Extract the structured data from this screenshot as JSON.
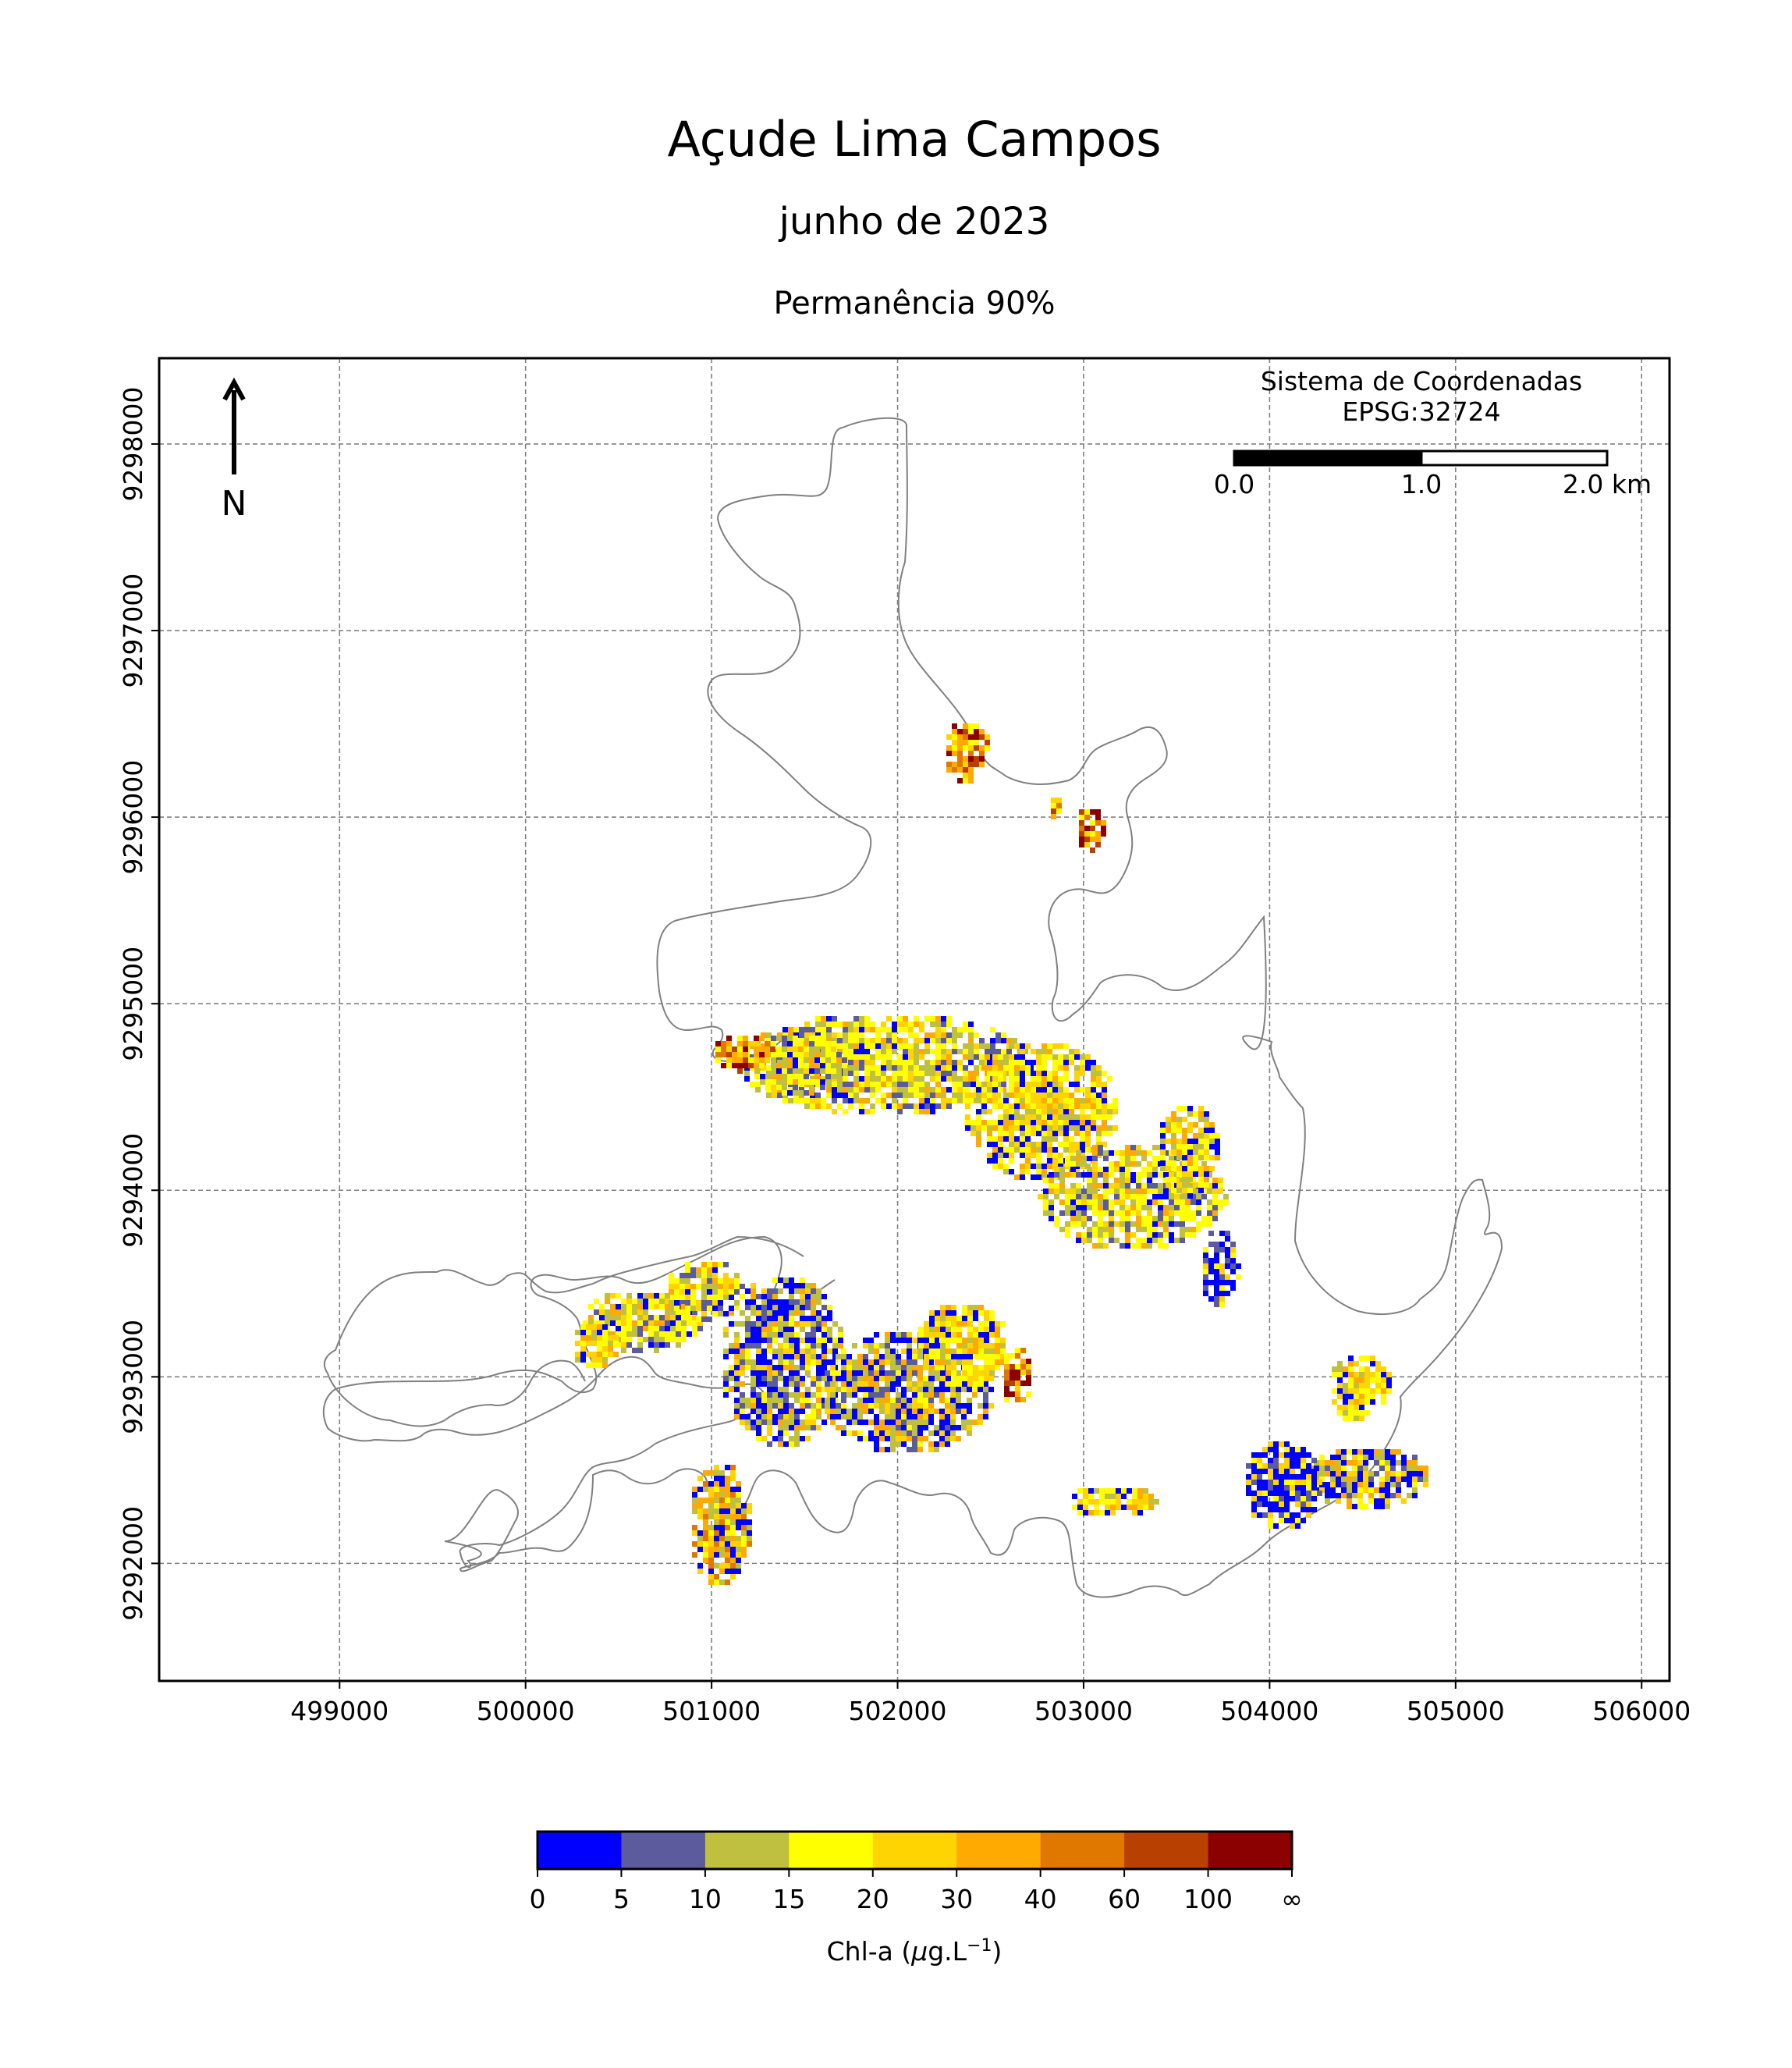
{
  "title": "Açude Lima Campos",
  "subtitle": "junho de 2023",
  "subtitle2": "Permanência 90%",
  "north_label": "N",
  "crs": {
    "line1": "Sistema de Coordenadas",
    "line2": "EPSG:32724"
  },
  "scalebar": {
    "labels": [
      "0.0",
      "1.0",
      "2.0 km"
    ]
  },
  "axes": {
    "x_ticks": [
      "499000",
      "500000",
      "501000",
      "502000",
      "503000",
      "504000",
      "505000",
      "506000"
    ],
    "y_ticks": [
      "9292000",
      "9293000",
      "9294000",
      "9295000",
      "9296000",
      "9297000",
      "9298000"
    ],
    "x_range": [
      498030,
      506150
    ],
    "y_range": [
      9291370,
      9298460
    ],
    "grid": true
  },
  "legend": {
    "title_prefix": "Chl-a (",
    "title_mu": "μ",
    "title_mid": "g.L",
    "title_sup": "−1",
    "title_suffix": ")",
    "classes": [
      {
        "from": "0",
        "color": "#0000ff"
      },
      {
        "from": "5",
        "color": "#5b5b9e"
      },
      {
        "from": "10",
        "color": "#c0c040"
      },
      {
        "from": "15",
        "color": "#ffff00"
      },
      {
        "from": "20",
        "color": "#ffd400"
      },
      {
        "from": "30",
        "color": "#ffaa00"
      },
      {
        "from": "40",
        "color": "#e07800"
      },
      {
        "from": "60",
        "color": "#b84000"
      },
      {
        "from": "100",
        "color": "#8b0000"
      }
    ],
    "last_label": "∞"
  },
  "outline_color": "#808080"
}
